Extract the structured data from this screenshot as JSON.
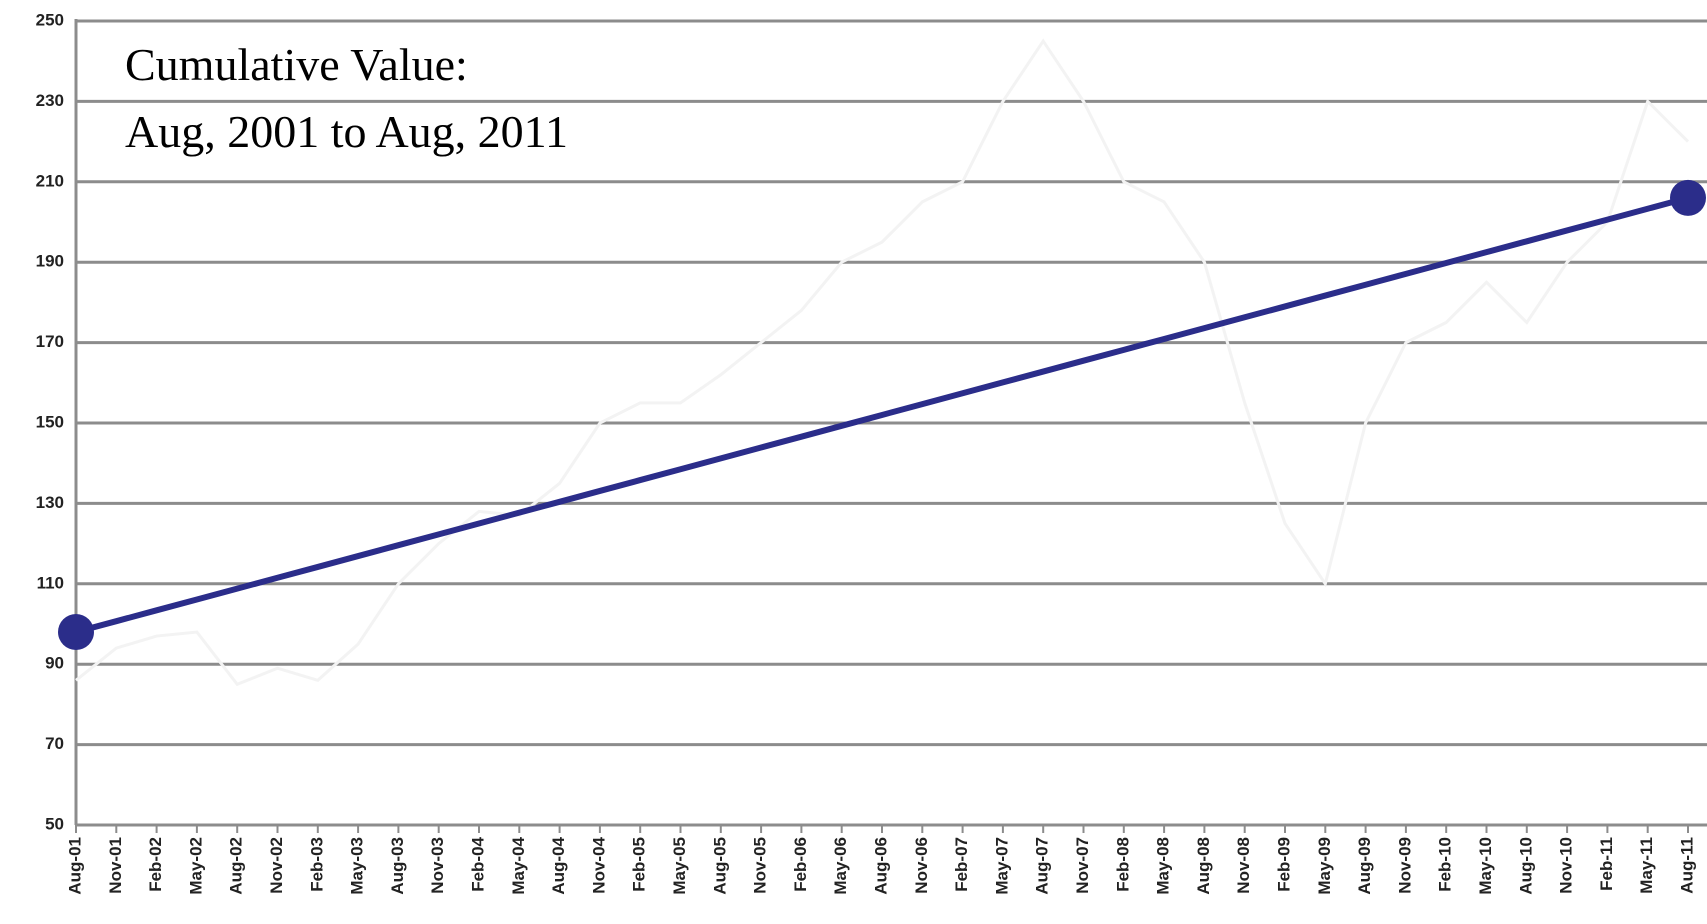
{
  "chart_data": {
    "type": "line",
    "title": "Cumulative Value:",
    "subtitle": "Aug, 2001 to Aug, 2011",
    "categories": [
      "Aug-01",
      "Nov-01",
      "Feb-02",
      "May-02",
      "Aug-02",
      "Nov-02",
      "Feb-03",
      "May-03",
      "Aug-03",
      "Nov-03",
      "Feb-04",
      "May-04",
      "Aug-04",
      "Nov-04",
      "Feb-05",
      "May-05",
      "Aug-05",
      "Nov-05",
      "Feb-06",
      "May-06",
      "Aug-06",
      "Nov-06",
      "Feb-07",
      "May-07",
      "Aug-07",
      "Nov-07",
      "Feb-08",
      "May-08",
      "Aug-08",
      "Nov-08",
      "Feb-09",
      "May-09",
      "Aug-09",
      "Nov-09",
      "Feb-10",
      "May-10",
      "Aug-10",
      "Nov-10",
      "Feb-11",
      "May-11",
      "Aug-11"
    ],
    "series": [
      {
        "color": "#f3f3f3",
        "markers": "none",
        "values": [
          86,
          94,
          97,
          98,
          85,
          89,
          86,
          95,
          110,
          120,
          128,
          127,
          135,
          150,
          155,
          155,
          162,
          170,
          178,
          190,
          195,
          205,
          210,
          230,
          245,
          230,
          210,
          205,
          190,
          155,
          125,
          110,
          150,
          170,
          175,
          185,
          175,
          190,
          200,
          230,
          220
        ]
      },
      {
        "color": "#2b2d8a",
        "markers": "ends",
        "values": [
          98,
          100.7,
          103.4,
          106.1,
          108.8,
          111.5,
          114.2,
          116.9,
          119.6,
          122.3,
          125,
          127.7,
          130.4,
          133.1,
          135.8,
          138.5,
          141.2,
          143.9,
          146.6,
          149.3,
          152,
          154.7,
          157.4,
          160.1,
          162.8,
          165.5,
          168.2,
          170.9,
          173.6,
          176.3,
          179,
          181.7,
          184.4,
          187.1,
          189.8,
          192.5,
          195.2,
          197.9,
          200.6,
          203.3,
          206
        ]
      }
    ],
    "ylim": [
      50,
      250
    ],
    "yticks": [
      50,
      70,
      90,
      110,
      130,
      150,
      170,
      190,
      210,
      230,
      250
    ],
    "grid": true
  }
}
